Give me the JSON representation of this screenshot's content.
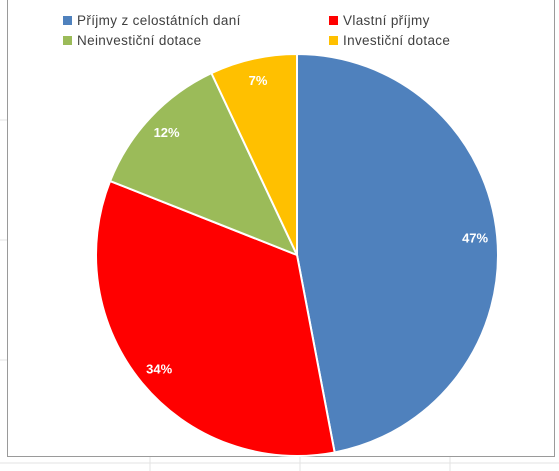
{
  "chart_data": {
    "type": "pie",
    "title": "",
    "categories": [
      "Příjmy z celostátních daní",
      "Vlastní příjmy",
      "Neinvestiční dotace",
      "Investiční dotace"
    ],
    "values": [
      47,
      34,
      12,
      7
    ],
    "data_labels": [
      "47%",
      "34%",
      "12%",
      "7%"
    ],
    "colors": [
      "#4f81bd",
      "#ff0000",
      "#9bbb59",
      "#ffc000"
    ],
    "legend_placement": "top",
    "start_angle_deg": 0,
    "direction": "clockwise"
  },
  "legend": {
    "items": [
      {
        "label": "Příjmy z celostátních daní",
        "color": "#4f81bd"
      },
      {
        "label": "Vlastní příjmy",
        "color": "#ff0000"
      },
      {
        "label": "Neinvestiční dotace",
        "color": "#9bbb59"
      },
      {
        "label": "Investiční dotace",
        "color": "#ffc000"
      }
    ]
  }
}
